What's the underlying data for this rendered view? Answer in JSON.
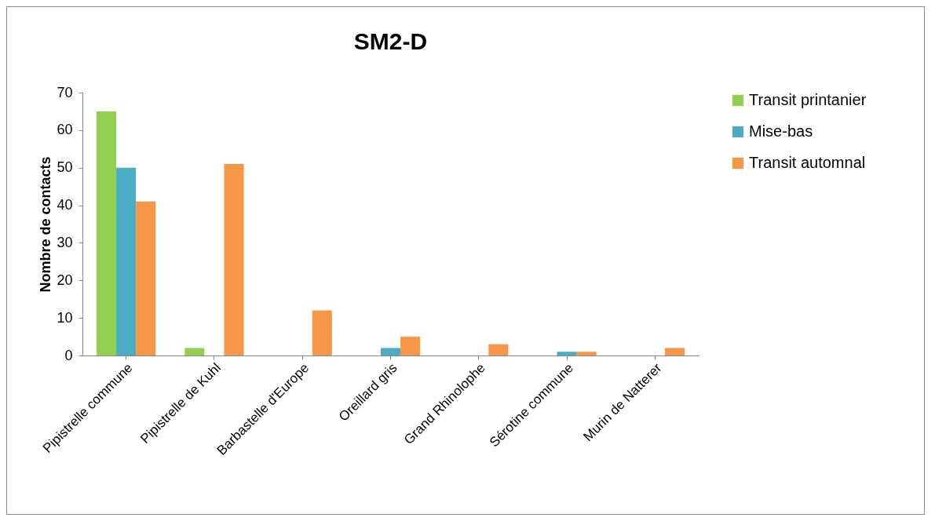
{
  "chart_data": {
    "type": "bar",
    "title": "SM2-D",
    "ylabel": "Nombre de contacts",
    "categories": [
      "Pipistrelle commune",
      "Pipistrelle de Kuhl",
      "Barbastelle d'Europe",
      "Oreillard gris",
      "Grand Rhinolophe",
      "Sérotine commune",
      "Murin de Natterer"
    ],
    "series": [
      {
        "name": "Transit printanier",
        "color": "#92d050",
        "values": [
          65,
          2,
          null,
          null,
          null,
          null,
          null
        ]
      },
      {
        "name": "Mise-bas",
        "color": "#4bacc6",
        "values": [
          50,
          null,
          null,
          2,
          null,
          1,
          null
        ]
      },
      {
        "name": "Transit automnal",
        "color": "#f79646",
        "values": [
          41,
          51,
          12,
          5,
          3,
          1,
          2
        ]
      }
    ],
    "ylim": [
      0,
      70
    ],
    "yticks": [
      0,
      10,
      20,
      30,
      40,
      50,
      60,
      70
    ],
    "grid": false,
    "legend": "right"
  }
}
